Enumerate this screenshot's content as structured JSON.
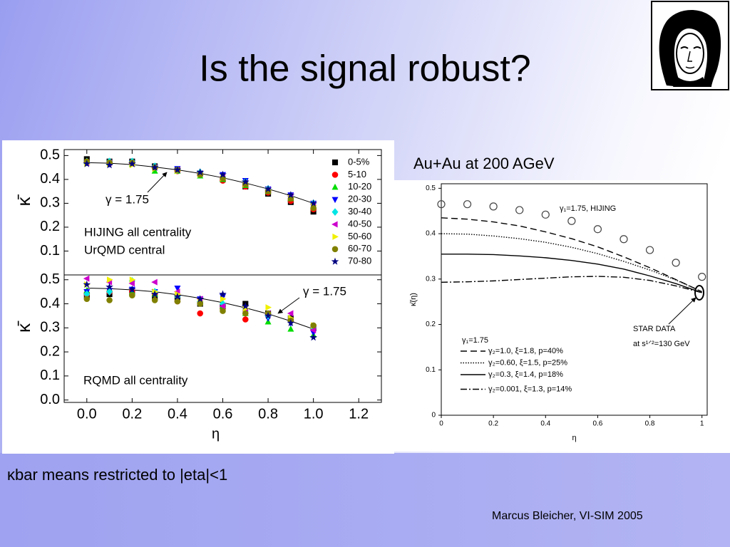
{
  "slide": {
    "title": "Is the signal robust?",
    "subtitle": "Au+Au at 200 AGeV",
    "note": "κbar means restricted to |eta|<1",
    "footer": "Marcus Bleicher, VI-SIM 2005"
  },
  "chart_data": [
    {
      "type": "scatter",
      "ylabel": "κ̄",
      "xlim": [
        -0.1,
        1.3
      ],
      "ylim": [
        0,
        0.525
      ],
      "yticks": [
        0.1,
        0.2,
        0.3,
        0.4,
        0.5
      ],
      "annotations": [
        "HIJING all centrality",
        "UrQMD central"
      ],
      "legend": "upper right",
      "x": [
        0,
        0.1,
        0.2,
        0.3,
        0.4,
        0.5,
        0.6,
        0.7,
        0.8,
        0.9,
        1.0
      ],
      "fit": {
        "label": "γ = 1.75",
        "values": [
          0.47,
          0.468,
          0.462,
          0.452,
          0.44,
          0.425,
          0.407,
          0.385,
          0.36,
          0.332,
          0.3
        ]
      },
      "series": [
        {
          "name": "0-5%",
          "color": "#000000",
          "marker": "square",
          "values": [
            0.485,
            0.475,
            0.475,
            0.455,
            0.44,
            0.425,
            0.4,
            0.37,
            0.34,
            0.305,
            0.265
          ]
        },
        {
          "name": "5-10",
          "color": "#ff0000",
          "marker": "circle",
          "values": [
            0.475,
            0.47,
            0.47,
            0.45,
            0.435,
            0.42,
            0.395,
            0.37,
            0.345,
            0.31,
            0.275
          ]
        },
        {
          "name": "10-20",
          "color": "#00dd00",
          "marker": "triangle-up",
          "values": [
            0.475,
            0.47,
            0.465,
            0.435,
            0.435,
            0.415,
            0.4,
            0.375,
            0.35,
            0.32,
            0.29
          ]
        },
        {
          "name": "20-30",
          "color": "#0000ff",
          "marker": "triangle-down",
          "values": [
            0.47,
            0.465,
            0.47,
            0.45,
            0.445,
            0.425,
            0.42,
            0.395,
            0.36,
            0.335,
            0.3
          ]
        },
        {
          "name": "30-40",
          "color": "#00e5e5",
          "marker": "diamond",
          "values": [
            0.475,
            0.475,
            0.475,
            0.455,
            0.44,
            0.43,
            0.41,
            0.39,
            0.36,
            0.33,
            0.3
          ]
        },
        {
          "name": "40-50",
          "color": "#cc00cc",
          "marker": "triangle-left",
          "values": [
            0.47,
            0.47,
            0.465,
            0.45,
            0.44,
            0.425,
            0.41,
            0.385,
            0.355,
            0.33,
            0.295
          ]
        },
        {
          "name": "50-60",
          "color": "#f0f000",
          "marker": "triangle-right",
          "values": [
            0.465,
            0.465,
            0.46,
            0.445,
            0.435,
            0.42,
            0.405,
            0.38,
            0.355,
            0.325,
            0.29
          ]
        },
        {
          "name": "60-70",
          "color": "#808000",
          "marker": "circle",
          "values": [
            0.475,
            0.47,
            0.47,
            0.45,
            0.44,
            0.42,
            0.405,
            0.38,
            0.35,
            0.32,
            0.28
          ]
        },
        {
          "name": "70-80",
          "color": "#000080",
          "marker": "star",
          "values": [
            0.465,
            0.46,
            0.465,
            0.45,
            0.44,
            0.43,
            0.42,
            0.39,
            0.36,
            0.335,
            0.3
          ]
        }
      ]
    },
    {
      "type": "scatter",
      "ylabel": "κ̄",
      "xlabel": "η",
      "xlim": [
        -0.1,
        1.3
      ],
      "ylim": [
        -0.01,
        0.52
      ],
      "xticks": [
        {
          "value": 0,
          "label": "0.0"
        },
        0.2,
        0.4,
        0.6,
        0.8,
        {
          "value": 1,
          "label": "1.0"
        },
        1.2
      ],
      "yticks": [
        {
          "value": 0,
          "label": "0.0"
        },
        0.1,
        0.2,
        0.3,
        0.4,
        0.5
      ],
      "annotations": [
        "RQMD all centrality"
      ],
      "x": [
        0,
        0.1,
        0.2,
        0.3,
        0.4,
        0.5,
        0.6,
        0.7,
        0.8,
        0.9,
        1.0
      ],
      "fit": {
        "label": "γ = 1.75",
        "values": [
          0.465,
          0.463,
          0.458,
          0.45,
          0.438,
          0.423,
          0.405,
          0.383,
          0.358,
          0.328,
          0.295
        ]
      },
      "series": [
        {
          "color": "#000000",
          "marker": "square",
          "values": [
            0.435,
            0.44,
            0.445,
            0.425,
            0.42,
            0.4,
            0.39,
            0.4,
            0.36,
            0.34,
            0.3
          ]
        },
        {
          "color": "#ff0000",
          "marker": "circle",
          "values": [
            0.44,
            0.45,
            0.45,
            0.44,
            0.41,
            0.36,
            0.38,
            0.335,
            0.35,
            0.33,
            0.3
          ]
        },
        {
          "color": "#00dd00",
          "marker": "triangle-up",
          "values": [
            0.455,
            0.46,
            0.45,
            0.44,
            0.42,
            0.41,
            0.39,
            0.36,
            0.325,
            0.295,
            0.27
          ]
        },
        {
          "color": "#0000ff",
          "marker": "triangle-down",
          "values": [
            0.45,
            0.455,
            0.46,
            0.45,
            0.465,
            0.42,
            0.43,
            0.37,
            0.34,
            0.32,
            0.28
          ]
        },
        {
          "color": "#00e5e5",
          "marker": "diamond",
          "values": [
            0.44,
            0.45,
            0.495,
            0.45,
            0.43,
            0.41,
            0.4,
            0.37,
            0.35,
            0.33,
            0.3
          ]
        },
        {
          "color": "#cc00cc",
          "marker": "triangle-left",
          "values": [
            0.505,
            0.49,
            0.485,
            0.49,
            0.45,
            0.42,
            0.39,
            0.37,
            0.36,
            0.36,
            0.29
          ]
        },
        {
          "color": "#f0f000",
          "marker": "triangle-right",
          "values": [
            0.48,
            0.5,
            0.5,
            0.45,
            0.44,
            0.41,
            0.42,
            0.38,
            0.385,
            0.34,
            0.31
          ]
        },
        {
          "color": "#808000",
          "marker": "circle",
          "values": [
            0.42,
            0.415,
            0.435,
            0.415,
            0.41,
            0.4,
            0.37,
            0.36,
            0.36,
            0.33,
            0.31
          ]
        },
        {
          "color": "#000080",
          "marker": "star",
          "values": [
            0.48,
            0.47,
            0.46,
            0.44,
            0.43,
            0.42,
            0.44,
            0.39,
            0.35,
            0.32,
            0.26
          ]
        }
      ]
    },
    {
      "type": "line",
      "xlabel": "η",
      "ylabel": "κ̄(η)",
      "xlim": [
        0,
        1.02
      ],
      "ylim": [
        0,
        0.51
      ],
      "xticks": [
        0,
        0.2,
        0.4,
        0.6,
        0.8,
        1
      ],
      "yticks": [
        0,
        0.1,
        0.2,
        0.3,
        0.4,
        0.5
      ],
      "legend_title": "γ₁=1.75",
      "legend": "lower left",
      "x": [
        0,
        0.1,
        0.2,
        0.3,
        0.4,
        0.5,
        0.6,
        0.7,
        0.8,
        0.9,
        1.0
      ],
      "star_data": {
        "label": "STAR DATA",
        "note": "at s¹ᐟ²=130 GeV",
        "x": 0.99,
        "y": 0.27
      },
      "series": [
        {
          "name": "γ₁=1.75, HIJING",
          "color": "#444444",
          "marker": "open-circle",
          "values": [
            0.465,
            0.465,
            0.46,
            0.452,
            0.442,
            0.428,
            0.41,
            0.388,
            0.364,
            0.336,
            0.305
          ]
        },
        {
          "name": "γ₂=1.0,  ξ=1.8, p=40%",
          "color": "#000000",
          "style": "dashed",
          "values": [
            0.435,
            0.432,
            0.426,
            0.417,
            0.404,
            0.389,
            0.371,
            0.349,
            0.325,
            0.299,
            0.272
          ]
        },
        {
          "name": "γ₂=0.60, ξ=1.5, p=25%",
          "color": "#000000",
          "style": "dotted",
          "values": [
            0.4,
            0.399,
            0.395,
            0.389,
            0.381,
            0.37,
            0.356,
            0.339,
            0.32,
            0.298,
            0.272
          ]
        },
        {
          "name": "γ₂=0.3,  ξ=1.4, p=18%",
          "color": "#000000",
          "style": "solid",
          "values": [
            0.355,
            0.355,
            0.354,
            0.351,
            0.347,
            0.341,
            0.333,
            0.322,
            0.307,
            0.29,
            0.27
          ]
        },
        {
          "name": "γ₂=0.001,  ξ=1.3, p=14%",
          "color": "#000000",
          "style": "dashdot",
          "values": [
            0.293,
            0.294,
            0.296,
            0.299,
            0.302,
            0.305,
            0.306,
            0.304,
            0.297,
            0.285,
            0.27
          ]
        }
      ]
    }
  ]
}
